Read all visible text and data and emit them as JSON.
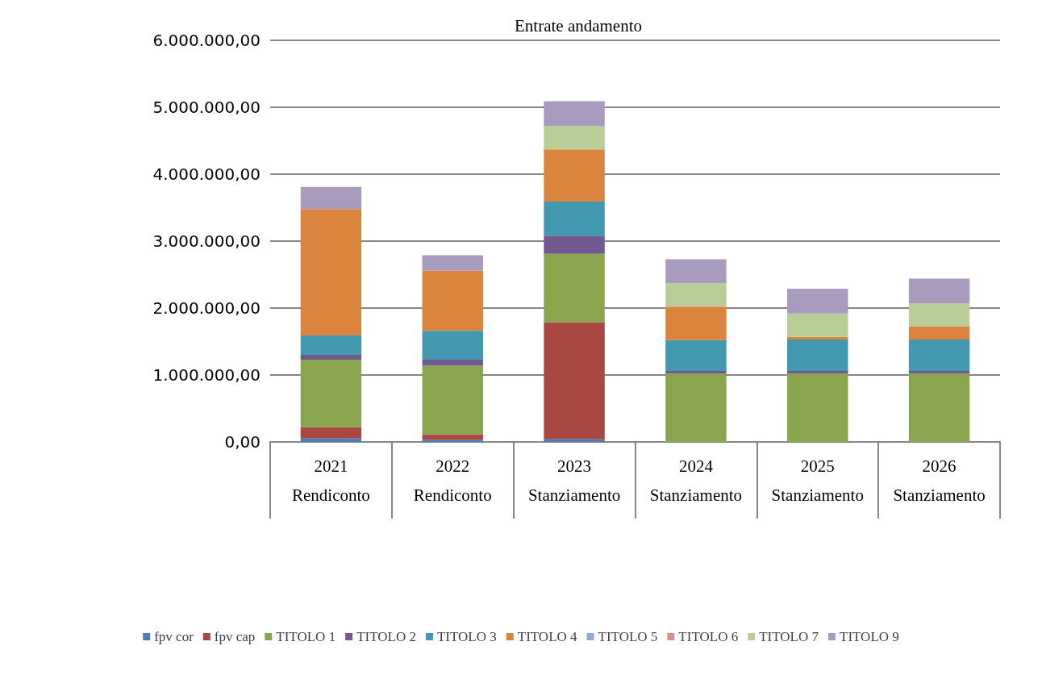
{
  "chart_data": {
    "type": "bar",
    "title": "Entrate andamento",
    "stacked": true,
    "grid": "y",
    "legend": "bottom",
    "categories": [
      "2021\nRendiconto",
      "2022\nRendiconto",
      "2023\nStanziamento",
      "2024\nStanziamento",
      "2025\nStanziamento",
      "2026\nStanziamento"
    ],
    "ylim": [
      0,
      6000000
    ],
    "yticks": [
      {
        "value": 0,
        "label": "0,00"
      },
      {
        "value": 1000000,
        "label": "1.000.000,00"
      },
      {
        "value": 2000000,
        "label": "2.000.000,00"
      },
      {
        "value": 3000000,
        "label": "3.000.000,00"
      },
      {
        "value": 4000000,
        "label": "4.000.000,00"
      },
      {
        "value": 5000000,
        "label": "5.000.000,00"
      },
      {
        "value": 6000000,
        "label": "6.000.000,00"
      }
    ],
    "series": [
      {
        "name": "fpv cor",
        "color": "#4a7ebb",
        "values": [
          50000,
          30000,
          40000,
          0,
          0,
          0
        ]
      },
      {
        "name": "fpv cap",
        "color": "#a94743",
        "values": [
          170000,
          80000,
          1750000,
          0,
          0,
          0
        ]
      },
      {
        "name": "TITOLO 1",
        "color": "#89a54e",
        "values": [
          1010000,
          1030000,
          1020000,
          1020000,
          1020000,
          1020000
        ]
      },
      {
        "name": "TITOLO 2",
        "color": "#71588f",
        "values": [
          70000,
          90000,
          270000,
          40000,
          40000,
          40000
        ]
      },
      {
        "name": "TITOLO 3",
        "color": "#4198af",
        "values": [
          290000,
          430000,
          510000,
          460000,
          470000,
          470000
        ]
      },
      {
        "name": "TITOLO 4",
        "color": "#db843d",
        "values": [
          1890000,
          900000,
          780000,
          500000,
          40000,
          200000
        ]
      },
      {
        "name": "TITOLO 5",
        "color": "#93a9cf",
        "values": [
          0,
          0,
          0,
          0,
          0,
          0
        ]
      },
      {
        "name": "TITOLO 6",
        "color": "#d19392",
        "values": [
          0,
          0,
          0,
          0,
          0,
          0
        ]
      },
      {
        "name": "TITOLO 7",
        "color": "#b9cd96",
        "values": [
          0,
          0,
          350000,
          350000,
          350000,
          340000
        ]
      },
      {
        "name": "TITOLO 9",
        "color": "#a99bbd",
        "values": [
          330000,
          230000,
          370000,
          360000,
          370000,
          370000
        ]
      }
    ]
  }
}
